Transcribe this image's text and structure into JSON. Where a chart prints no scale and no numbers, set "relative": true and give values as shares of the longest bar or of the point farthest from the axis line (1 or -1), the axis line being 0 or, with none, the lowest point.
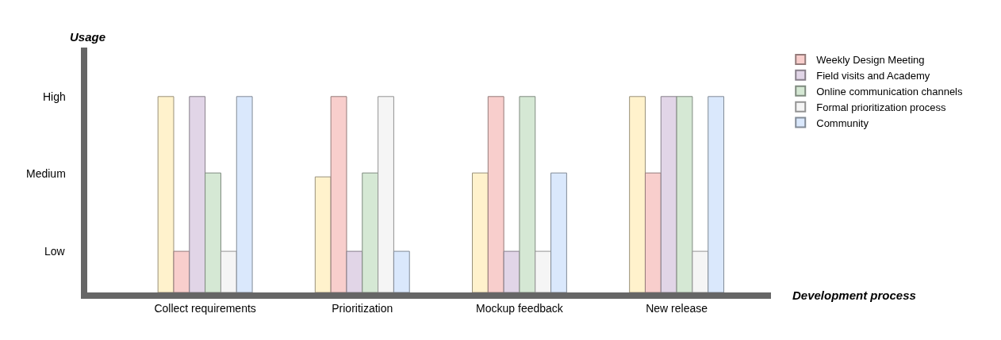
{
  "chart_data": {
    "type": "bar",
    "xlabel": "Development process",
    "ylabel": "Usage",
    "relative": true,
    "categories": [
      "Collect requirements",
      "Prioritization",
      "Mockup feedback",
      "New release"
    ],
    "series": [
      {
        "color": "#fff2cc",
        "values": [
          1,
          0.59,
          0.61,
          1
        ]
      },
      {
        "name": "Weekly Design Meeting",
        "color": "#f8cecc",
        "values": [
          0.21,
          1,
          1,
          0.61
        ]
      },
      {
        "name": "Field visits and Academy",
        "color": "#e1d5e7",
        "values": [
          1,
          0.21,
          0.21,
          1
        ]
      },
      {
        "name": "Online communication channels",
        "color": "#d5e8d4",
        "values": [
          0.61,
          0.61,
          1,
          1
        ]
      },
      {
        "name": "Formal prioritization process",
        "color": "#f5f5f5",
        "values": [
          0.21,
          1,
          0.21,
          0.21
        ]
      },
      {
        "name": "Community",
        "color": "#dae8fc",
        "values": [
          1,
          0.21,
          0.61,
          1
        ]
      }
    ],
    "annotations": [
      "Low",
      "Medium",
      "High"
    ],
    "legend": "right"
  }
}
